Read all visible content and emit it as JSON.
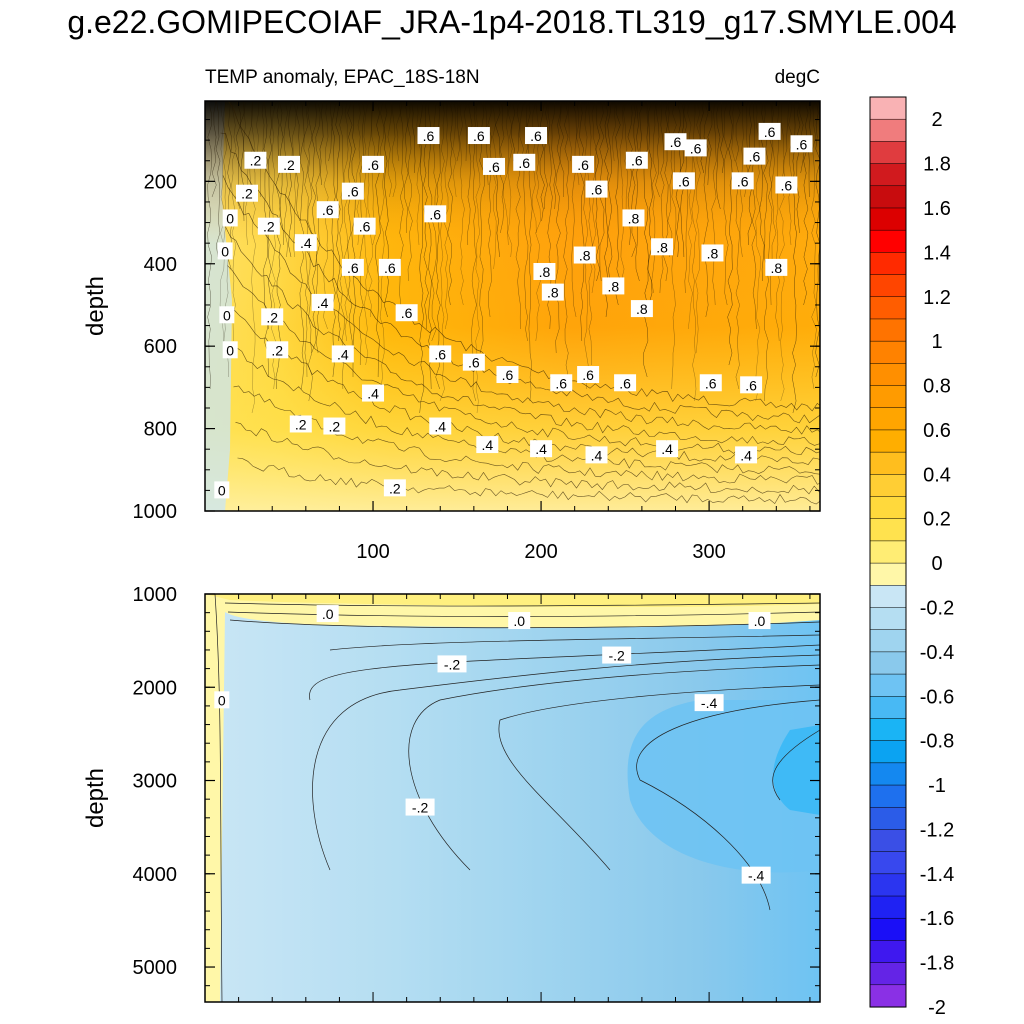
{
  "title": "g.e22.GOMIPECOIAF_JRA-1p4-2018.TL319_g17.SMYLE.004",
  "chart_data": [
    {
      "type": "heatmap",
      "panel": "upper",
      "title_left": "TEMP anomaly, EPAC_18S-18N",
      "title_right": "degC",
      "xlabel": "",
      "ylabel": "depth",
      "xlim": [
        0,
        366
      ],
      "ylim": [
        1000,
        5
      ],
      "xticks": [
        100,
        200,
        300
      ],
      "yticks": [
        200,
        400,
        600,
        800,
        1000
      ],
      "contour_labels": [
        {
          "text": ".2",
          "x": 30,
          "y": 150
        },
        {
          "text": ".2",
          "x": 50,
          "y": 160
        },
        {
          "text": ".2",
          "x": 25,
          "y": 230
        },
        {
          "text": ".2",
          "x": 38,
          "y": 310
        },
        {
          "text": "0",
          "x": 15,
          "y": 290
        },
        {
          "text": "0",
          "x": 12,
          "y": 370
        },
        {
          "text": "0",
          "x": 13,
          "y": 525
        },
        {
          "text": "0",
          "x": 15,
          "y": 610
        },
        {
          "text": ".2",
          "x": 40,
          "y": 530
        },
        {
          "text": ".2",
          "x": 43,
          "y": 610
        },
        {
          "text": ".4",
          "x": 60,
          "y": 350
        },
        {
          "text": ".4",
          "x": 70,
          "y": 495
        },
        {
          "text": ".4",
          "x": 82,
          "y": 620
        },
        {
          "text": ".4",
          "x": 100,
          "y": 715
        },
        {
          "text": ".2",
          "x": 57,
          "y": 790
        },
        {
          "text": ".2",
          "x": 77,
          "y": 795
        },
        {
          "text": "0",
          "x": 10,
          "y": 950
        },
        {
          "text": ".2",
          "x": 113,
          "y": 945
        },
        {
          "text": ".6",
          "x": 73,
          "y": 270
        },
        {
          "text": ".6",
          "x": 88,
          "y": 225
        },
        {
          "text": ".6",
          "x": 100,
          "y": 160
        },
        {
          "text": ".6",
          "x": 95,
          "y": 310
        },
        {
          "text": ".6",
          "x": 88,
          "y": 410
        },
        {
          "text": ".6",
          "x": 110,
          "y": 410
        },
        {
          "text": ".6",
          "x": 120,
          "y": 520
        },
        {
          "text": ".6",
          "x": 133,
          "y": 90
        },
        {
          "text": ".6",
          "x": 163,
          "y": 90
        },
        {
          "text": ".6",
          "x": 197,
          "y": 90
        },
        {
          "text": ".6",
          "x": 172,
          "y": 165
        },
        {
          "text": ".6",
          "x": 190,
          "y": 155
        },
        {
          "text": ".6",
          "x": 137,
          "y": 280
        },
        {
          "text": ".6",
          "x": 225,
          "y": 160
        },
        {
          "text": ".6",
          "x": 257,
          "y": 150
        },
        {
          "text": ".6",
          "x": 280,
          "y": 105
        },
        {
          "text": ".6",
          "x": 292,
          "y": 120
        },
        {
          "text": ".6",
          "x": 327,
          "y": 140
        },
        {
          "text": ".6",
          "x": 336,
          "y": 80
        },
        {
          "text": ".6",
          "x": 355,
          "y": 110
        },
        {
          "text": ".6",
          "x": 233,
          "y": 220
        },
        {
          "text": ".6",
          "x": 285,
          "y": 200
        },
        {
          "text": ".6",
          "x": 320,
          "y": 200
        },
        {
          "text": ".6",
          "x": 346,
          "y": 210
        },
        {
          "text": ".8",
          "x": 255,
          "y": 290
        },
        {
          "text": ".8",
          "x": 226,
          "y": 380
        },
        {
          "text": ".8",
          "x": 202,
          "y": 420
        },
        {
          "text": ".8",
          "x": 272,
          "y": 360
        },
        {
          "text": ".8",
          "x": 302,
          "y": 375
        },
        {
          "text": ".8",
          "x": 243,
          "y": 455
        },
        {
          "text": ".8",
          "x": 207,
          "y": 470
        },
        {
          "text": ".8",
          "x": 260,
          "y": 510
        },
        {
          "text": ".8",
          "x": 340,
          "y": 410
        },
        {
          "text": ".6",
          "x": 140,
          "y": 620
        },
        {
          "text": ".6",
          "x": 160,
          "y": 640
        },
        {
          "text": ".6",
          "x": 180,
          "y": 670
        },
        {
          "text": ".6",
          "x": 212,
          "y": 690
        },
        {
          "text": ".6",
          "x": 228,
          "y": 670
        },
        {
          "text": ".6",
          "x": 250,
          "y": 690
        },
        {
          "text": ".6",
          "x": 301,
          "y": 690
        },
        {
          "text": ".6",
          "x": 325,
          "y": 695
        },
        {
          "text": ".4",
          "x": 140,
          "y": 795
        },
        {
          "text": ".4",
          "x": 168,
          "y": 840
        },
        {
          "text": ".4",
          "x": 200,
          "y": 850
        },
        {
          "text": ".4",
          "x": 233,
          "y": 865
        },
        {
          "text": ".4",
          "x": 275,
          "y": 850
        },
        {
          "text": ".4",
          "x": 322,
          "y": 865
        }
      ]
    },
    {
      "type": "heatmap",
      "panel": "lower",
      "title_left": "",
      "title_right": "",
      "xlabel": "",
      "ylabel": "depth",
      "xlim": [
        0,
        366
      ],
      "ylim": [
        1000,
        5375
      ],
      "yticks": [
        1000,
        2000,
        3000,
        4000,
        5000
      ],
      "contour_labels": [
        {
          "text": ".0",
          "x": 73,
          "y": 1215
        },
        {
          "text": ".0",
          "x": 187,
          "y": 1290
        },
        {
          "text": ".0",
          "x": 330,
          "y": 1290
        },
        {
          "text": "0",
          "x": 10,
          "y": 2140
        },
        {
          "text": "-.2",
          "x": 147,
          "y": 1755
        },
        {
          "text": "-.2",
          "x": 245,
          "y": 1660
        },
        {
          "text": "-.4",
          "x": 300,
          "y": 2170
        },
        {
          "text": "-.2",
          "x": 128,
          "y": 3290
        },
        {
          "text": "-.4",
          "x": 328,
          "y": 4020
        }
      ]
    }
  ],
  "colorbar": {
    "labels": [
      "2",
      "1.8",
      "1.6",
      "1.4",
      "1.2",
      "1",
      "0.8",
      "0.6",
      "0.4",
      "0.2",
      "0",
      "-0.2",
      "-0.4",
      "-0.6",
      "-0.8",
      "-1",
      "-1.2",
      "-1.4",
      "-1.6",
      "-1.8",
      "-2"
    ],
    "colors": [
      "#f9b2b4",
      "#f07c7d",
      "#e03c3f",
      "#d11a1e",
      "#c80c0e",
      "#dc0000",
      "#ff0000",
      "#ff2a00",
      "#ff4500",
      "#ff5d00",
      "#ff7300",
      "#ff8200",
      "#ff8f00",
      "#ff9b00",
      "#ffa500",
      "#ffae00",
      "#ffbe1e",
      "#ffce34",
      "#ffd93c",
      "#ffe24e",
      "#ffed74",
      "#fff7a8",
      "#c9e6f5",
      "#b5def2",
      "#9fd4ef",
      "#8ac9ec",
      "#6ec3f3",
      "#48b9f4",
      "#1ab4f5",
      "#0ba3f2",
      "#1488f0",
      "#1e70ee",
      "#2b5ce8",
      "#3a4fe6",
      "#3848ee",
      "#2b35f0",
      "#1f22f3",
      "#1a0ff7",
      "#3f18ef",
      "#6424e6",
      "#8a30e5"
    ]
  }
}
